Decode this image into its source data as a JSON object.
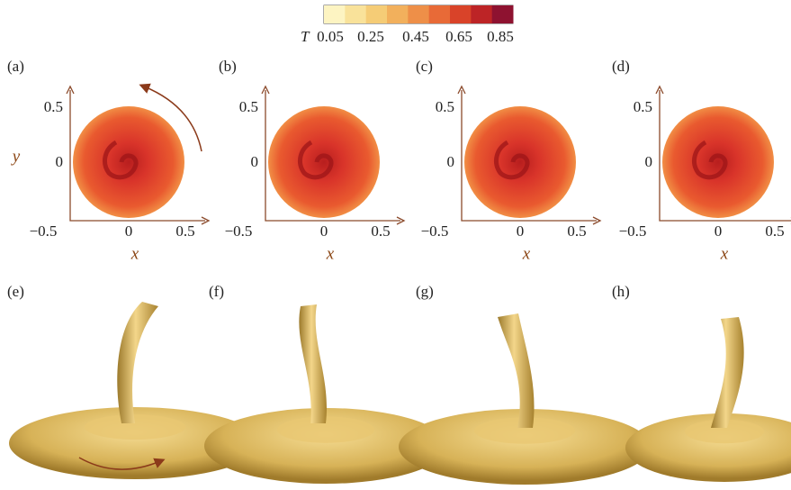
{
  "colorbar": {
    "label": "T",
    "ticks": [
      "0.05",
      "0.25",
      "0.45",
      "0.65",
      "0.85"
    ]
  },
  "axes": {
    "x_ticks": [
      "−0.5",
      "0",
      "0.5"
    ],
    "y_ticks": [
      "0.5",
      "0"
    ],
    "x_label": "x",
    "y_label": "y"
  },
  "top_panels": [
    "(a)",
    "(b)",
    "(c)",
    "(d)"
  ],
  "bottom_panels": [
    "(e)",
    "(f)",
    "(g)",
    "(h)"
  ]
}
